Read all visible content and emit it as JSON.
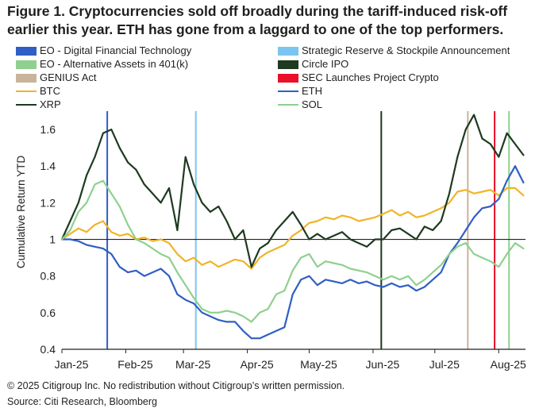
{
  "title": "Figure 1. Cryptocurrencies sold off broadly during the tariff-induced risk-off earlier this year. ETH has gone from a laggard to one of the top performers.",
  "footnote": "© 2025 Citigroup Inc. No redistribution without Citigroup’s written permission.",
  "source": "Source: Citi Research, Bloomberg",
  "chart_data": {
    "type": "line",
    "ylabel": "Cumulative Return YTD",
    "xlabel": "",
    "ylim": [
      0.4,
      1.7
    ],
    "xlim": [
      0,
      225
    ],
    "grid": false,
    "baseline": 1,
    "yticks": [
      {
        "value": 0.4,
        "label": "0.4"
      },
      {
        "value": 0.6,
        "label": "0.6"
      },
      {
        "value": 0.8,
        "label": "0.8"
      },
      {
        "value": 1.0,
        "label": "1"
      },
      {
        "value": 1.2,
        "label": "1.2"
      },
      {
        "value": 1.4,
        "label": "1.4"
      },
      {
        "value": 1.6,
        "label": "1.6"
      }
    ],
    "xticks": [
      {
        "value": 0,
        "label": "Jan-25"
      },
      {
        "value": 31,
        "label": "Feb-25"
      },
      {
        "value": 59,
        "label": "Mar-25"
      },
      {
        "value": 90,
        "label": "Apr-25"
      },
      {
        "value": 120,
        "label": "May-25"
      },
      {
        "value": 151,
        "label": "Jun-25"
      },
      {
        "value": 181,
        "label": "Jul-25"
      },
      {
        "value": 212,
        "label": "Aug-25"
      }
    ],
    "events": [
      {
        "name": "EO - Digital Financial Technology",
        "day": 22,
        "color": "#2f5fc4",
        "style": "bar"
      },
      {
        "name": "Strategic Reserve & Stockpile Announcement",
        "day": 65,
        "color": "#7cc5f2",
        "style": "bar"
      },
      {
        "name": "EO - Alternative Assets in 401(k)",
        "day": 217,
        "color": "#8fd08f",
        "style": "bar"
      },
      {
        "name": "Circle IPO",
        "day": 155,
        "color": "#1e3a20",
        "style": "bar"
      },
      {
        "name": "GENIUS Act",
        "day": 197,
        "color": "#c9b39a",
        "style": "bar"
      },
      {
        "name": "SEC Launches Project Crypto",
        "day": 210,
        "color": "#e8102a",
        "style": "bar"
      }
    ],
    "series": [
      {
        "name": "BTC",
        "color": "#f0b429",
        "x": [
          0,
          4,
          8,
          12,
          16,
          20,
          24,
          28,
          32,
          36,
          40,
          44,
          48,
          52,
          56,
          60,
          64,
          68,
          72,
          76,
          80,
          84,
          88,
          92,
          96,
          100,
          104,
          108,
          112,
          116,
          120,
          124,
          128,
          132,
          136,
          140,
          144,
          148,
          152,
          156,
          160,
          164,
          168,
          172,
          176,
          180,
          184,
          188,
          192,
          196,
          200,
          204,
          208,
          212,
          216,
          220,
          224
        ],
        "values": [
          1.0,
          1.03,
          1.06,
          1.04,
          1.08,
          1.1,
          1.04,
          1.02,
          1.03,
          1.0,
          1.01,
          0.99,
          1.0,
          0.98,
          0.92,
          0.88,
          0.9,
          0.86,
          0.88,
          0.85,
          0.87,
          0.89,
          0.88,
          0.84,
          0.9,
          0.93,
          0.95,
          0.97,
          1.02,
          1.05,
          1.09,
          1.1,
          1.12,
          1.11,
          1.13,
          1.12,
          1.1,
          1.11,
          1.12,
          1.14,
          1.16,
          1.13,
          1.15,
          1.12,
          1.13,
          1.15,
          1.17,
          1.2,
          1.26,
          1.27,
          1.25,
          1.26,
          1.27,
          1.24,
          1.28,
          1.28,
          1.24
        ]
      },
      {
        "name": "XRP",
        "color": "#1e3a20",
        "x": [
          0,
          4,
          8,
          12,
          16,
          20,
          24,
          28,
          32,
          36,
          40,
          44,
          48,
          52,
          56,
          60,
          64,
          68,
          72,
          76,
          80,
          84,
          88,
          92,
          96,
          100,
          104,
          108,
          112,
          116,
          120,
          124,
          128,
          132,
          136,
          140,
          144,
          148,
          152,
          156,
          160,
          164,
          168,
          172,
          176,
          180,
          184,
          188,
          192,
          196,
          200,
          204,
          208,
          212,
          216,
          220,
          224
        ],
        "values": [
          1.0,
          1.1,
          1.2,
          1.35,
          1.45,
          1.58,
          1.6,
          1.5,
          1.42,
          1.38,
          1.3,
          1.25,
          1.2,
          1.28,
          1.05,
          1.45,
          1.3,
          1.2,
          1.15,
          1.18,
          1.1,
          1.0,
          1.05,
          0.85,
          0.95,
          0.98,
          1.05,
          1.1,
          1.15,
          1.08,
          1.0,
          1.03,
          1.0,
          1.02,
          1.04,
          1.0,
          0.98,
          0.96,
          1.0,
          1.0,
          1.05,
          1.06,
          1.03,
          1.0,
          1.07,
          1.05,
          1.1,
          1.25,
          1.45,
          1.6,
          1.68,
          1.55,
          1.52,
          1.45,
          1.58,
          1.52,
          1.46
        ]
      },
      {
        "name": "ETH",
        "color": "#2f5fc4",
        "x": [
          0,
          4,
          8,
          12,
          16,
          20,
          24,
          28,
          32,
          36,
          40,
          44,
          48,
          52,
          56,
          60,
          64,
          68,
          72,
          76,
          80,
          84,
          88,
          92,
          96,
          100,
          104,
          108,
          112,
          116,
          120,
          124,
          128,
          132,
          136,
          140,
          144,
          148,
          152,
          156,
          160,
          164,
          168,
          172,
          176,
          180,
          184,
          188,
          192,
          196,
          200,
          204,
          208,
          212,
          216,
          220,
          224
        ],
        "values": [
          1.0,
          1.0,
          0.99,
          0.97,
          0.96,
          0.95,
          0.92,
          0.85,
          0.82,
          0.83,
          0.8,
          0.82,
          0.84,
          0.8,
          0.7,
          0.67,
          0.65,
          0.6,
          0.58,
          0.56,
          0.55,
          0.55,
          0.5,
          0.46,
          0.46,
          0.48,
          0.5,
          0.52,
          0.7,
          0.78,
          0.8,
          0.75,
          0.78,
          0.77,
          0.76,
          0.78,
          0.76,
          0.77,
          0.75,
          0.74,
          0.76,
          0.74,
          0.75,
          0.72,
          0.74,
          0.78,
          0.82,
          0.92,
          0.98,
          1.05,
          1.12,
          1.17,
          1.18,
          1.22,
          1.32,
          1.4,
          1.31
        ]
      },
      {
        "name": "SOL",
        "color": "#8fd08f",
        "x": [
          0,
          4,
          8,
          12,
          16,
          20,
          24,
          28,
          32,
          36,
          40,
          44,
          48,
          52,
          56,
          60,
          64,
          68,
          72,
          76,
          80,
          84,
          88,
          92,
          96,
          100,
          104,
          108,
          112,
          116,
          120,
          124,
          128,
          132,
          136,
          140,
          144,
          148,
          152,
          156,
          160,
          164,
          168,
          172,
          176,
          180,
          184,
          188,
          192,
          196,
          200,
          204,
          208,
          212,
          216,
          220,
          224
        ],
        "values": [
          1.0,
          1.05,
          1.15,
          1.2,
          1.3,
          1.32,
          1.25,
          1.18,
          1.08,
          1.0,
          0.98,
          0.95,
          0.92,
          0.9,
          0.82,
          0.75,
          0.68,
          0.62,
          0.6,
          0.6,
          0.61,
          0.6,
          0.58,
          0.55,
          0.6,
          0.62,
          0.7,
          0.72,
          0.83,
          0.9,
          0.92,
          0.85,
          0.88,
          0.87,
          0.86,
          0.84,
          0.83,
          0.82,
          0.8,
          0.78,
          0.8,
          0.78,
          0.8,
          0.75,
          0.78,
          0.82,
          0.86,
          0.92,
          0.96,
          0.98,
          0.92,
          0.9,
          0.88,
          0.85,
          0.92,
          0.98,
          0.95
        ]
      }
    ]
  }
}
